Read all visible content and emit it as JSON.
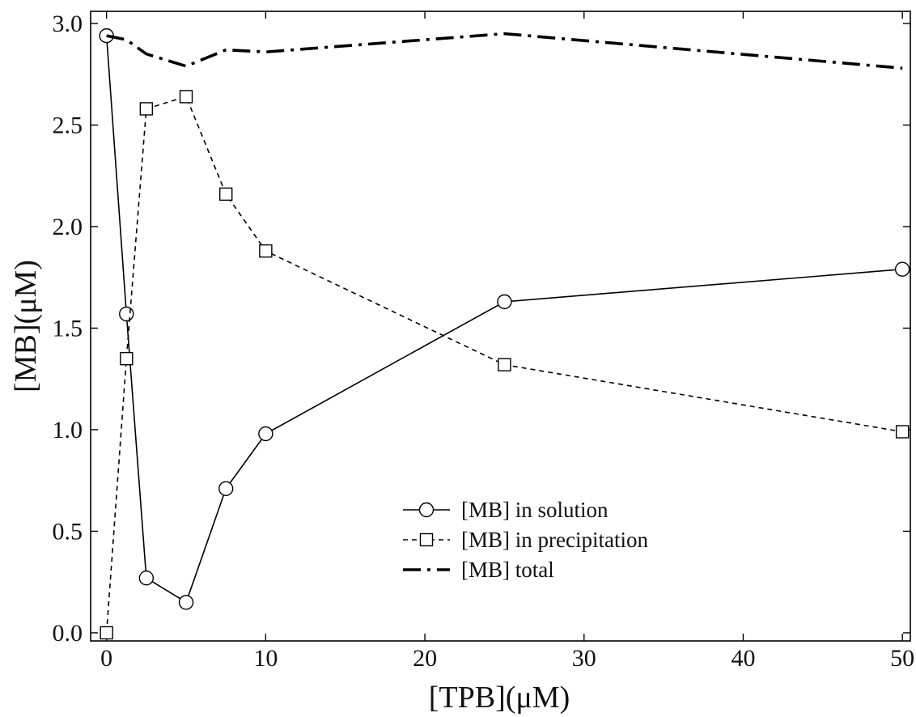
{
  "chart_data": {
    "type": "line",
    "title": "",
    "xlabel": "[TPB](μM)",
    "ylabel": "[MB](μM)",
    "xlim": [
      -1,
      50.5
    ],
    "ylim": [
      -0.04,
      3.06
    ],
    "xticks": [
      0,
      10,
      20,
      30,
      40,
      50
    ],
    "xtick_labels": [
      "0",
      "10",
      "20",
      "30",
      "40",
      "50"
    ],
    "yticks": [
      0.0,
      0.5,
      1.0,
      1.5,
      2.0,
      2.5,
      3.0
    ],
    "ytick_labels": [
      "0.0",
      "0.5",
      "1.0",
      "1.5",
      "2.0",
      "2.5",
      "3.0"
    ],
    "grid": false,
    "legend_position": "lower-center",
    "series": [
      {
        "name": "[MB] in solution",
        "marker": "circle",
        "line_style": "solid",
        "color": "#000000",
        "points": [
          [
            0,
            2.94
          ],
          [
            1.25,
            1.57
          ],
          [
            2.5,
            0.27
          ],
          [
            5,
            0.15
          ],
          [
            7.5,
            0.71
          ],
          [
            10,
            0.98
          ],
          [
            25,
            1.63
          ],
          [
            50,
            1.79
          ]
        ]
      },
      {
        "name": "[MB] in precipitation",
        "marker": "square",
        "line_style": "dashed",
        "color": "#000000",
        "points": [
          [
            0,
            0.0
          ],
          [
            1.25,
            1.35
          ],
          [
            2.5,
            2.58
          ],
          [
            5,
            2.64
          ],
          [
            7.5,
            2.16
          ],
          [
            10,
            1.88
          ],
          [
            25,
            1.32
          ],
          [
            50,
            0.99
          ]
        ]
      },
      {
        "name": "[MB] total",
        "marker": "none",
        "line_style": "dash-dot",
        "color": "#000000",
        "points": [
          [
            0,
            2.94
          ],
          [
            1.25,
            2.92
          ],
          [
            2.5,
            2.85
          ],
          [
            5,
            2.79
          ],
          [
            7.5,
            2.87
          ],
          [
            10,
            2.86
          ],
          [
            25,
            2.95
          ],
          [
            50,
            2.78
          ]
        ]
      }
    ]
  }
}
